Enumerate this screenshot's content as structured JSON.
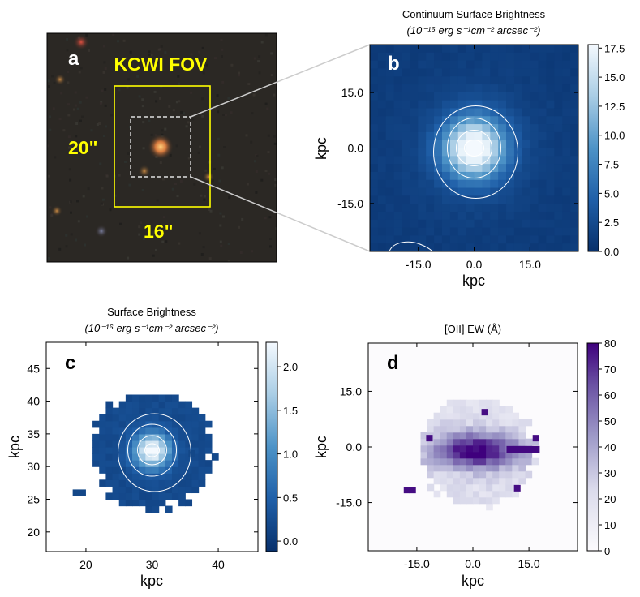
{
  "panels": [
    {
      "id": "a",
      "label": "a",
      "kind": "image",
      "annotations": {
        "fov": "KCWI FOV",
        "height": "20\"",
        "width": "16\""
      }
    },
    {
      "id": "b",
      "label": "b",
      "title": [
        "Continuum Surface Brightness",
        "(10⁻¹⁶ erg s⁻¹cm⁻² arcsec⁻²)"
      ],
      "xlabel": "kpc",
      "ylabel": "kpc",
      "xticks": [
        "-15.0",
        "0.0",
        "15.0"
      ],
      "yticks": [
        "15.0",
        "0.0",
        "-15.0"
      ],
      "colorbar": {
        "ticks": [
          "17.5",
          "15.0",
          "12.5",
          "10.0",
          "7.5",
          "5.0",
          "2.5",
          "0.0"
        ],
        "range": [
          0,
          17.8
        ]
      }
    },
    {
      "id": "c",
      "label": "c",
      "title": [
        "Surface Brightness",
        "(10⁻¹⁶ erg s⁻¹cm⁻² arcsec⁻²)"
      ],
      "xlabel": "kpc",
      "ylabel": "kpc",
      "xticks": [
        "20",
        "30",
        "40"
      ],
      "yticks": [
        "45",
        "40",
        "35",
        "30",
        "25",
        "20"
      ],
      "colorbar": {
        "ticks": [
          "2.0",
          "1.5",
          "1.0",
          "0.5",
          "0.0"
        ],
        "range": [
          -0.12,
          2.28
        ]
      }
    },
    {
      "id": "d",
      "label": "d",
      "title": [
        "[OII]  EW (Å)"
      ],
      "xlabel": "kpc",
      "ylabel": "kpc",
      "xticks": [
        "-15.0",
        "0.0",
        "15.0"
      ],
      "yticks": [
        "15.0",
        "0.0",
        "-15.0"
      ],
      "colorbar": {
        "ticks": [
          "80",
          "70",
          "60",
          "50",
          "40",
          "30",
          "20",
          "10",
          "0"
        ],
        "range": [
          0,
          80
        ]
      }
    }
  ],
  "chart_data": [
    {
      "type": "heatmap",
      "panel": "b",
      "title": "Continuum Surface Brightness (10^-16 erg s^-1 cm^-2 arcsec^-2)",
      "xlabel": "kpc",
      "ylabel": "kpc",
      "xlim": [
        -28,
        28
      ],
      "ylim": [
        -28,
        28
      ],
      "colorbar_range": [
        0,
        17.8
      ],
      "peak": {
        "x": 0.0,
        "y": 0.0,
        "value": 17.5
      }
    },
    {
      "type": "heatmap",
      "panel": "c",
      "title": "Surface Brightness (10^-16 erg s^-1 cm^-2 arcsec^-2)",
      "xlabel": "kpc",
      "ylabel": "kpc",
      "xlim": [
        14,
        46
      ],
      "ylim": [
        17,
        49
      ],
      "colorbar_range": [
        -0.12,
        2.28
      ],
      "peak": {
        "x": 30,
        "y": 32.5,
        "value": 2.2
      }
    },
    {
      "type": "heatmap",
      "panel": "d",
      "title": "[OII] EW (Angstrom)",
      "xlabel": "kpc",
      "ylabel": "kpc",
      "xlim": [
        -28,
        28
      ],
      "ylim": [
        -28,
        28
      ],
      "colorbar_range": [
        0,
        80
      ],
      "peak": {
        "x": 5,
        "y": -2,
        "value": 78
      }
    }
  ]
}
